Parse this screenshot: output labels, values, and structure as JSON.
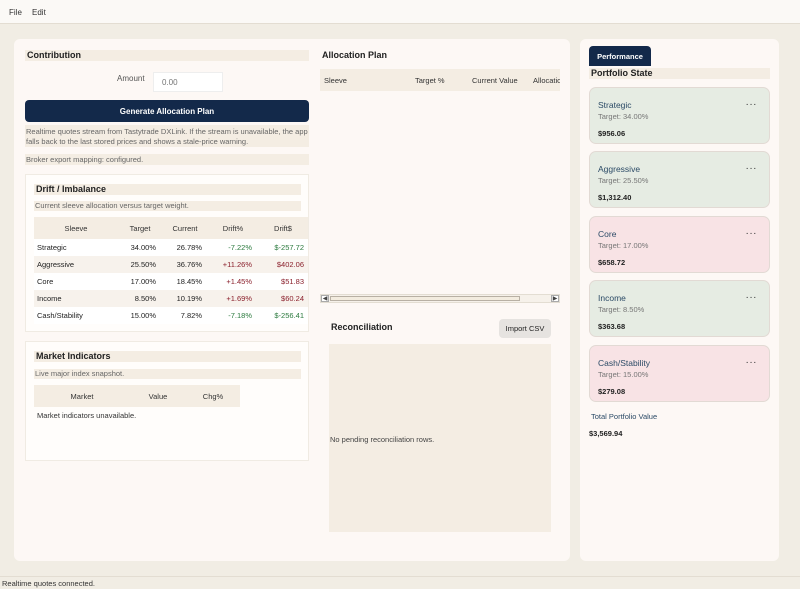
{
  "menu": {
    "file": "File",
    "edit": "Edit"
  },
  "contribution": {
    "title": "Contribution",
    "amount_label": "Amount",
    "amount_placeholder": "0.00",
    "generate_button": "Generate Allocation Plan",
    "note_line1": "Realtime quotes stream from Tastytrade DXLink. If the stream is unavailable, the app",
    "note_line2": "falls back to the last stored prices and shows a stale-price warning.",
    "broker_mapping": "Broker export mapping: configured."
  },
  "drift": {
    "title": "Drift / Imbalance",
    "subtitle": "Current sleeve allocation versus target weight.",
    "columns": [
      "Sleeve",
      "Target",
      "Current",
      "Drift%",
      "Drift$"
    ],
    "rows": [
      [
        "Strategic",
        "34.00%",
        "26.78%",
        "-7.22%",
        "$-257.72"
      ],
      [
        "Aggressive",
        "25.50%",
        "36.76%",
        "+11.26%",
        "$402.06"
      ],
      [
        "Core",
        "17.00%",
        "18.45%",
        "+1.45%",
        "$51.83"
      ],
      [
        "Income",
        "8.50%",
        "10.19%",
        "+1.69%",
        "$60.24"
      ],
      [
        "Cash/Stability",
        "15.00%",
        "7.82%",
        "-7.18%",
        "$-256.41"
      ]
    ]
  },
  "market": {
    "title": "Market Indicators",
    "subtitle": "Live major index snapshot.",
    "columns": [
      "Market",
      "Value",
      "Chg%"
    ],
    "empty": "Market indicators unavailable."
  },
  "allocation": {
    "title": "Allocation Plan",
    "columns": [
      "Sleeve",
      "Target %",
      "Current Value",
      "Allocation"
    ]
  },
  "reconciliation": {
    "title": "Reconciliation",
    "import_button": "Import CSV",
    "empty": "No pending reconciliation rows."
  },
  "performance": {
    "tab": "Performance",
    "title": "Portfolio State",
    "sleeves": [
      {
        "name": "Strategic",
        "target": "Target: 34.00%",
        "value": "$956.06",
        "more": "···"
      },
      {
        "name": "Aggressive",
        "target": "Target: 25.50%",
        "value": "$1,312.40",
        "more": "···"
      },
      {
        "name": "Core",
        "target": "Target: 17.00%",
        "value": "$658.72",
        "more": "···"
      },
      {
        "name": "Income",
        "target": "Target: 8.50%",
        "value": "$363.68",
        "more": "···"
      },
      {
        "name": "Cash/Stability",
        "target": "Target: 15.00%",
        "value": "$279.08",
        "more": "···"
      }
    ],
    "total_label": "Total Portfolio Value",
    "total_value": "$3,569.94"
  },
  "status": "Realtime quotes connected.",
  "icons": {
    "scroll_left": "chevron-left-icon",
    "scroll_right": "chevron-right-icon",
    "more": "more-horizontal-icon"
  }
}
